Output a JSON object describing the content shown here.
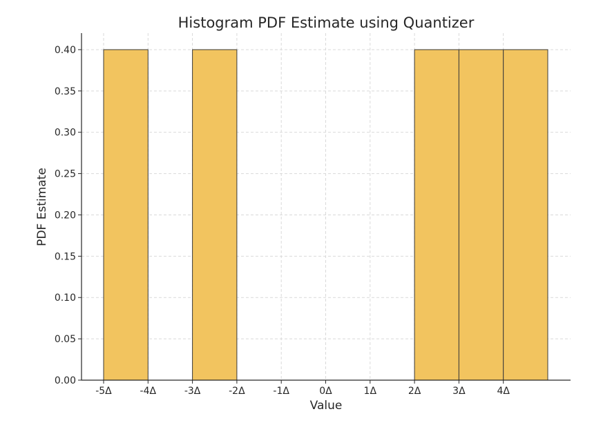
{
  "chart_data": {
    "type": "bar",
    "title": "Histogram PDF Estimate using Quantizer",
    "xlabel": "Value",
    "ylabel": "PDF Estimate",
    "x_ticks": [
      {
        "value": -5,
        "label": "-5Δ"
      },
      {
        "value": -4,
        "label": "-4Δ"
      },
      {
        "value": -3,
        "label": "-3Δ"
      },
      {
        "value": -2,
        "label": "-2Δ"
      },
      {
        "value": -1,
        "label": "-1Δ"
      },
      {
        "value": 0,
        "label": "0Δ"
      },
      {
        "value": 1,
        "label": "1Δ"
      },
      {
        "value": 2,
        "label": "2Δ"
      },
      {
        "value": 3,
        "label": "3Δ"
      },
      {
        "value": 4,
        "label": "4Δ"
      }
    ],
    "y_ticks": [
      {
        "value": 0.0,
        "label": "0.00"
      },
      {
        "value": 0.05,
        "label": "0.05"
      },
      {
        "value": 0.1,
        "label": "0.10"
      },
      {
        "value": 0.15,
        "label": "0.15"
      },
      {
        "value": 0.2,
        "label": "0.20"
      },
      {
        "value": 0.25,
        "label": "0.25"
      },
      {
        "value": 0.3,
        "label": "0.30"
      },
      {
        "value": 0.35,
        "label": "0.35"
      },
      {
        "value": 0.4,
        "label": "0.40"
      }
    ],
    "bins": [
      {
        "start": -5,
        "end": -4,
        "value": 0.4
      },
      {
        "start": -3,
        "end": -2,
        "value": 0.4
      },
      {
        "start": 2,
        "end": 3,
        "value": 0.4
      },
      {
        "start": 3,
        "end": 4,
        "value": 0.4
      },
      {
        "start": 4,
        "end": 5,
        "value": 0.4
      }
    ],
    "xlim": [
      -5.5,
      5.5
    ],
    "ylim": [
      0,
      0.42
    ],
    "grid": true,
    "bar_color": "#f2c45f",
    "edge_color": "#3a3a3a"
  }
}
